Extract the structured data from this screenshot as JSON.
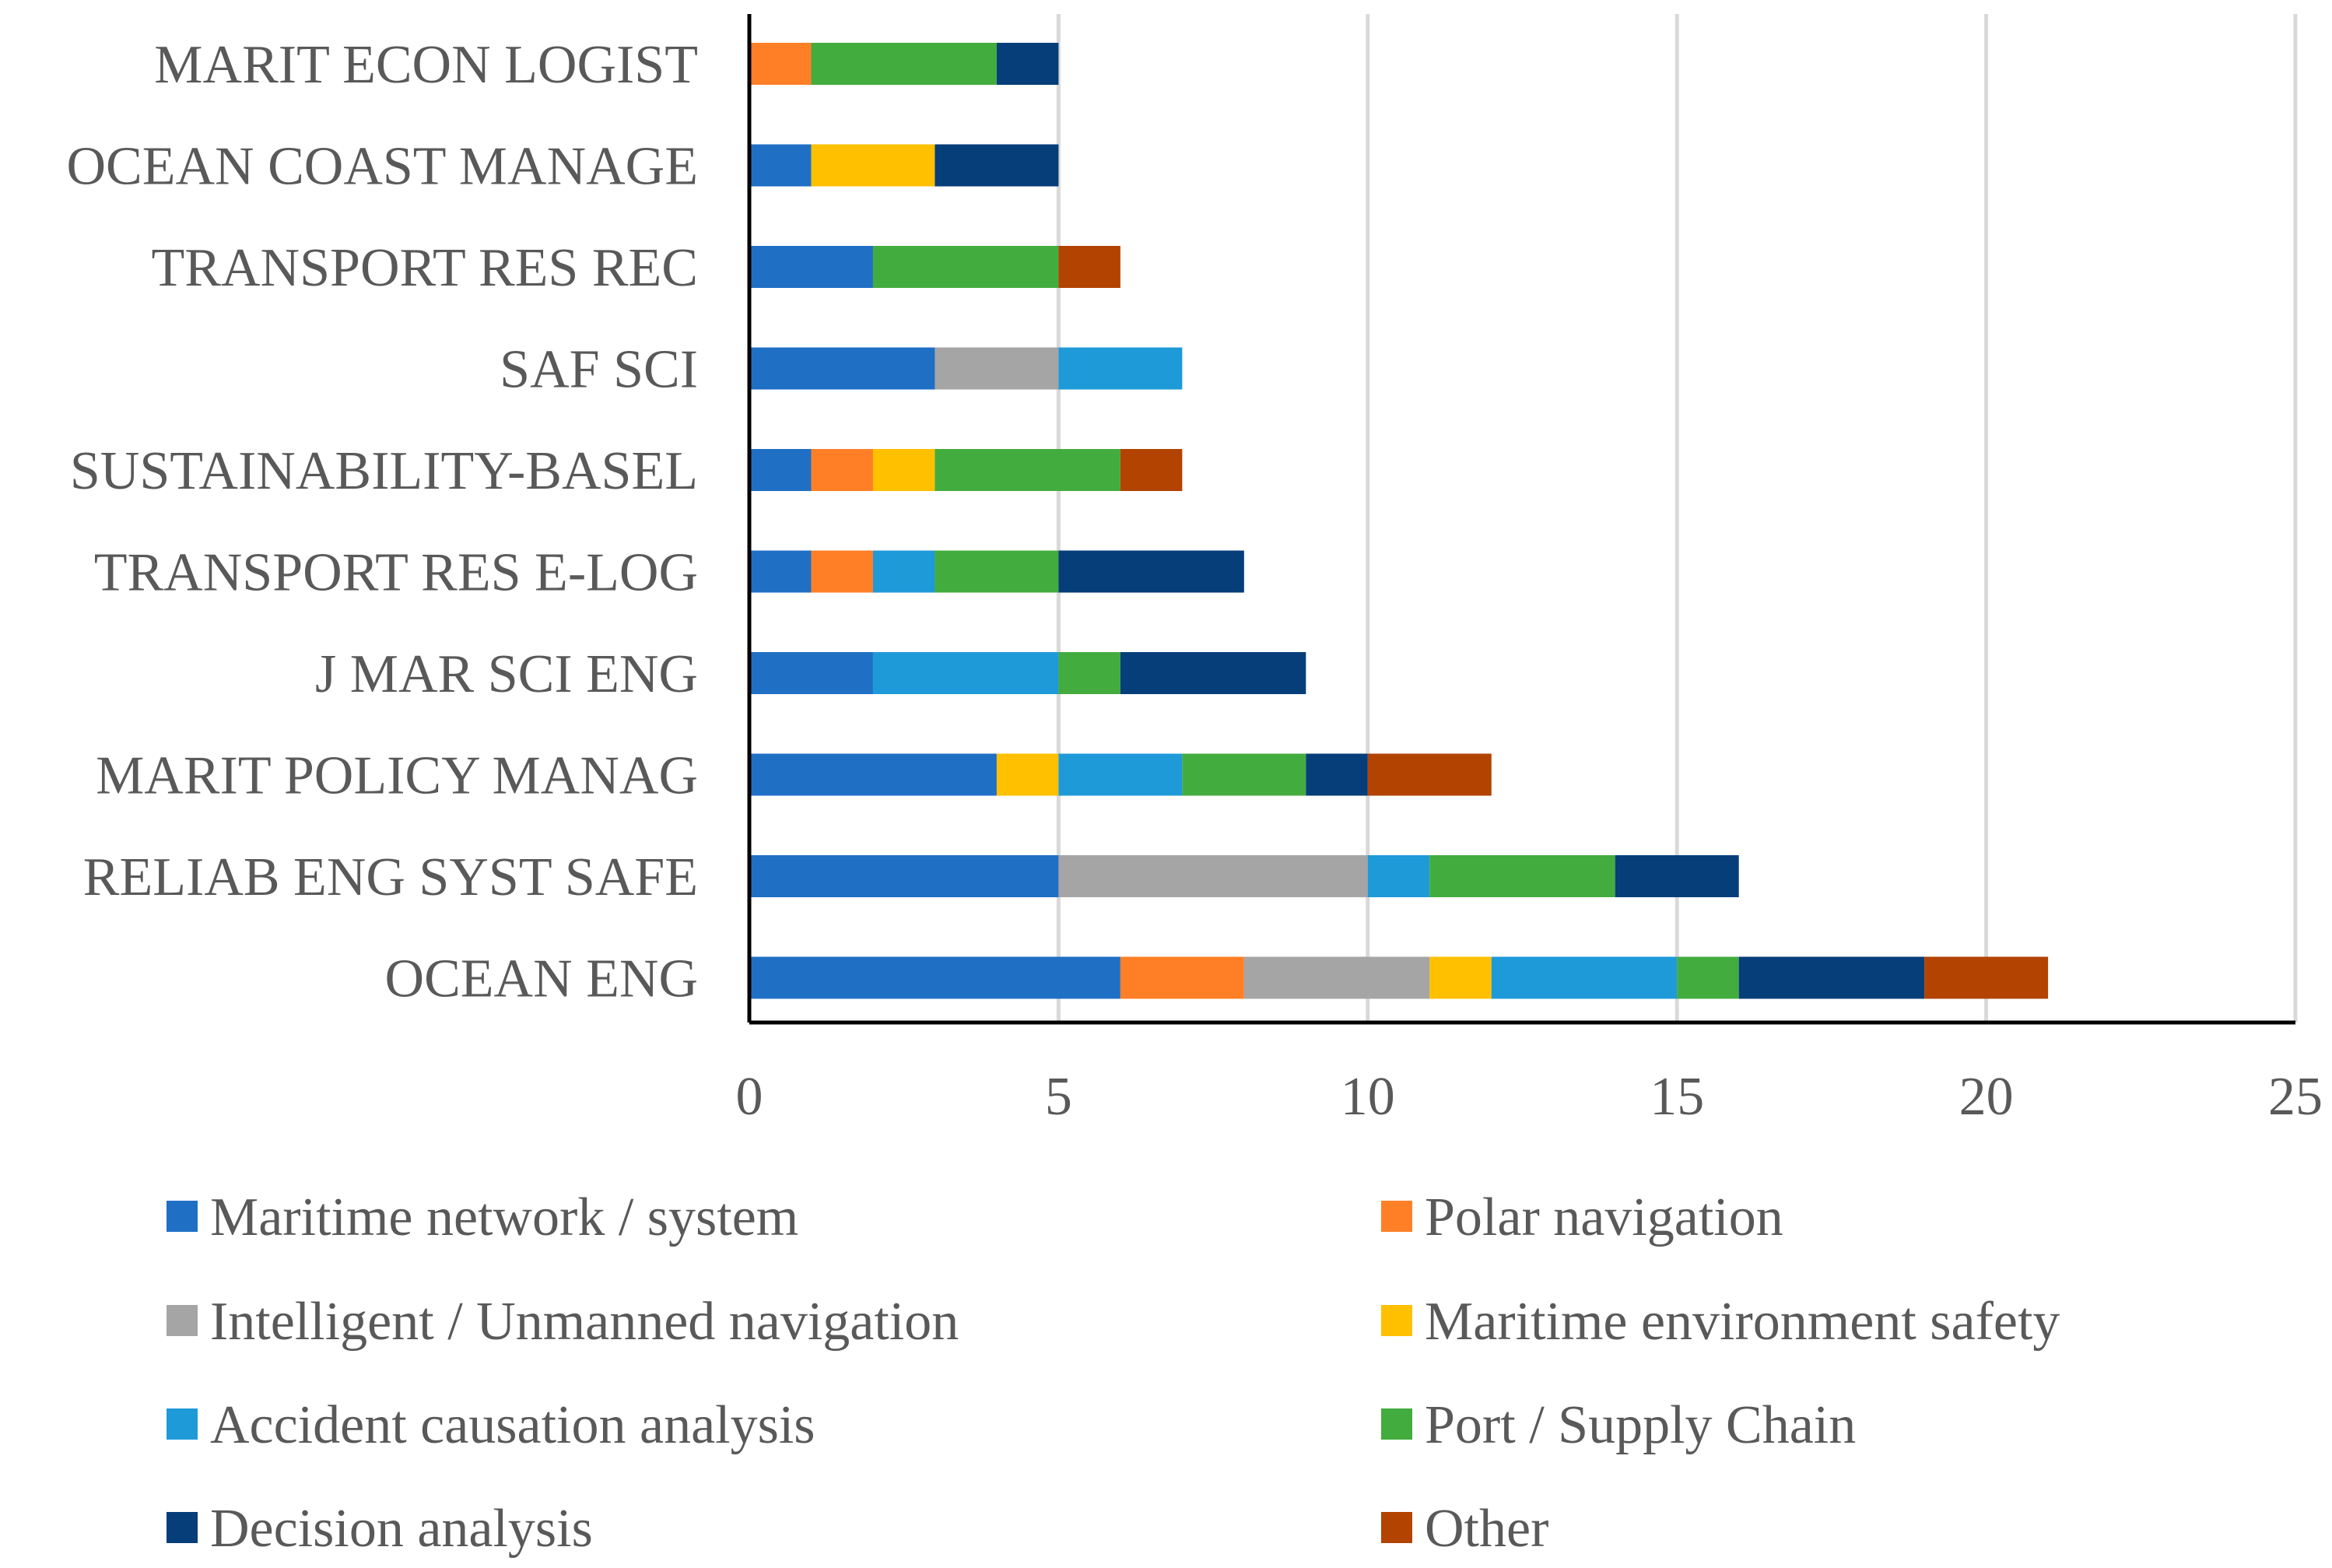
{
  "chart_data": {
    "type": "bar",
    "orientation": "horizontal",
    "stacked": true,
    "title": "",
    "xlabel": "",
    "ylabel": "",
    "xlim": [
      0,
      25
    ],
    "xticks": [
      "0",
      "5",
      "10",
      "15",
      "20",
      "25"
    ],
    "grid": "vertical",
    "legend_position": "bottom",
    "categories": [
      "MARIT ECON LOGIST",
      "OCEAN COAST MANAGE",
      "TRANSPORT RES REC",
      "SAF SCI",
      "SUSTAINABILITY-BASEL",
      "TRANSPORT RES E-LOG",
      "J MAR SCI ENG",
      "MARIT POLICY MANAG",
      "RELIAB ENG SYST SAFE",
      "OCEAN ENG"
    ],
    "series": [
      {
        "name": "Maritime network / system",
        "color": "#1F6FC5",
        "values": [
          0,
          1,
          2,
          3,
          1,
          1,
          2,
          4,
          5,
          6
        ]
      },
      {
        "name": "Polar navigation",
        "color": "#FF7F27",
        "values": [
          1,
          0,
          0,
          0,
          1,
          1,
          0,
          0,
          0,
          2
        ]
      },
      {
        "name": "Intelligent / Unmanned navigation",
        "color": "#A5A5A5",
        "values": [
          0,
          0,
          0,
          2,
          0,
          0,
          0,
          0,
          5,
          3
        ]
      },
      {
        "name": "Maritime environment safety",
        "color": "#FFC000",
        "values": [
          0,
          2,
          0,
          0,
          1,
          0,
          0,
          1,
          0,
          1
        ]
      },
      {
        "name": "Accident causation analysis",
        "color": "#1E9AD9",
        "values": [
          0,
          0,
          0,
          2,
          0,
          1,
          3,
          2,
          1,
          3
        ]
      },
      {
        "name": "Port / Supply Chain",
        "color": "#43AC3F",
        "values": [
          3,
          0,
          3,
          0,
          3,
          2,
          1,
          2,
          3,
          1
        ]
      },
      {
        "name": "Decision analysis",
        "color": "#053E79",
        "values": [
          1,
          2,
          0,
          0,
          0,
          3,
          3,
          1,
          2,
          3
        ]
      },
      {
        "name": "Other",
        "color": "#B24300",
        "values": [
          0,
          0,
          1,
          0,
          1,
          0,
          0,
          2,
          0,
          2
        ]
      }
    ]
  }
}
